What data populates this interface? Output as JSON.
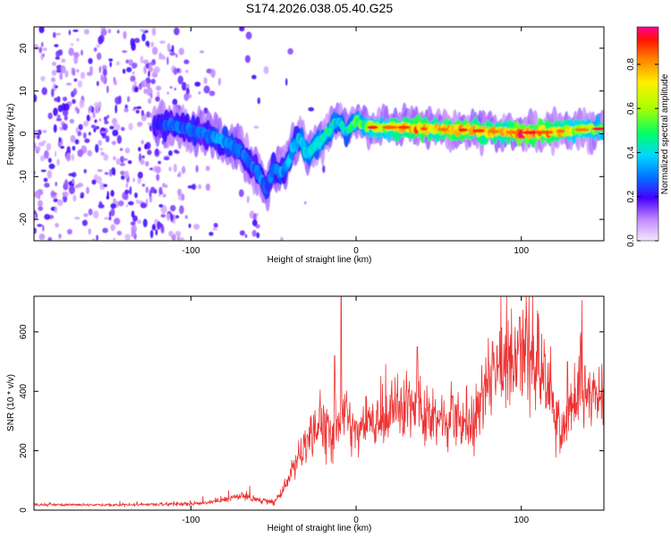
{
  "title": "S174.2026.038.05.40.G25",
  "chart_data": [
    {
      "type": "heatmap",
      "xlabel": "Height of straight line (km)",
      "ylabel": "Frequency (Hz)",
      "xlim": [
        -195,
        150
      ],
      "ylim": [
        -25,
        25
      ],
      "xticks": [
        -100,
        0,
        100
      ],
      "yticks": [
        -20,
        -10,
        0,
        10,
        20
      ],
      "colorbar": {
        "label": "Normalized spectral amplitude",
        "range": [
          0,
          0.97
        ],
        "ticks": [
          0.0,
          0.2,
          0.4,
          0.6,
          0.8
        ],
        "tick_labels": [
          "0.0",
          "0.2",
          "0.4",
          "0.6",
          "0.8"
        ]
      },
      "ridge": {
        "x": [
          -122,
          -110,
          -100,
          -92,
          -85,
          -78,
          -70,
          -64,
          -58,
          -54,
          -50,
          -46,
          -42,
          -38,
          -34,
          -30,
          -26,
          -22,
          -18,
          -14,
          -10,
          -6,
          -2,
          0,
          4,
          10,
          20,
          30,
          40,
          50,
          60,
          70,
          80,
          90,
          100,
          110,
          120,
          130,
          140,
          150
        ],
        "frequency": [
          2,
          2,
          1,
          0,
          -1,
          -2,
          -4,
          -7,
          -10,
          -13,
          -8,
          -9,
          -8,
          -3,
          -1,
          -5,
          -3,
          -2,
          0,
          2,
          3,
          0,
          2,
          3,
          2,
          1.5,
          1.5,
          1.5,
          1.2,
          1,
          1,
          0.8,
          0.6,
          0.4,
          0.3,
          0.3,
          0.5,
          0.8,
          1,
          1.2
        ],
        "amplitude": [
          0.25,
          0.3,
          0.3,
          0.3,
          0.35,
          0.35,
          0.3,
          0.3,
          0.35,
          0.3,
          0.3,
          0.35,
          0.35,
          0.4,
          0.4,
          0.45,
          0.5,
          0.5,
          0.5,
          0.45,
          0.45,
          0.45,
          0.5,
          0.55,
          0.6,
          0.65,
          0.7,
          0.8,
          0.85,
          0.75,
          0.9,
          0.85,
          0.8,
          0.75,
          0.95,
          0.9,
          0.8,
          0.7,
          0.65,
          0.6
        ]
      }
    },
    {
      "type": "line",
      "xlabel": "Height of straight line (km)",
      "ylabel": "SNR (10 * v/v)",
      "xlim": [
        -195,
        150
      ],
      "ylim": [
        0,
        720
      ],
      "xticks": [
        -100,
        0,
        100
      ],
      "yticks": [
        0,
        200,
        400,
        600
      ],
      "color": "#ee3333",
      "envelope": {
        "x": [
          -195,
          -150,
          -110,
          -90,
          -80,
          -70,
          -60,
          -50,
          -45,
          -40,
          -35,
          -30,
          -25,
          -20,
          -15,
          -10,
          -5,
          0,
          5,
          10,
          20,
          30,
          40,
          50,
          60,
          70,
          80,
          90,
          100,
          110,
          115,
          120,
          125,
          130,
          135,
          140,
          145,
          150
        ],
        "snr": [
          18,
          18,
          20,
          25,
          35,
          50,
          35,
          25,
          60,
          120,
          170,
          220,
          260,
          280,
          240,
          300,
          330,
          250,
          310,
          300,
          330,
          360,
          330,
          300,
          310,
          300,
          430,
          500,
          560,
          480,
          440,
          330,
          260,
          340,
          420,
          380,
          360,
          340
        ]
      },
      "peaks": [
        {
          "x": -9,
          "snr": 720
        },
        {
          "x": -13,
          "snr": 520
        },
        {
          "x": 37,
          "snr": 550
        },
        {
          "x": 99,
          "snr": 650
        },
        {
          "x": 128,
          "snr": 500
        }
      ]
    }
  ]
}
